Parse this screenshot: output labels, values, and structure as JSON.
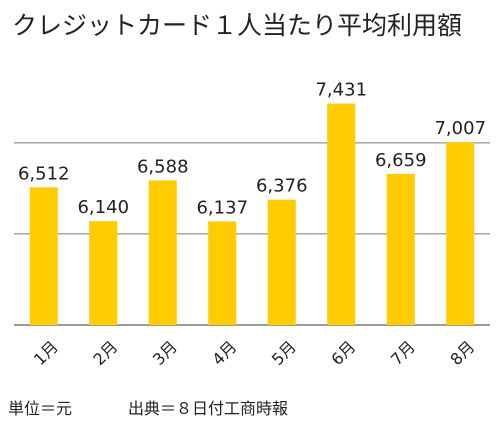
{
  "chart_data": {
    "type": "bar",
    "title": "クレジットカード１人当たり平均利用額",
    "categories": [
      "1月",
      "2月",
      "3月",
      "4月",
      "5月",
      "6月",
      "7月",
      "8月"
    ],
    "values": [
      6512,
      6140,
      6588,
      6137,
      6376,
      7431,
      6659,
      7007
    ],
    "value_labels": [
      "6,512",
      "6,140",
      "6,588",
      "6,137",
      "6,376",
      "7,431",
      "6,659",
      "7,007"
    ],
    "ylim": [
      5000,
      7800
    ],
    "grid": true,
    "bar_color": "#FFCC00",
    "xlabel": "",
    "ylabel": ""
  },
  "footer": {
    "unit": "単位＝元",
    "source": "出典＝８日付工商時報"
  }
}
